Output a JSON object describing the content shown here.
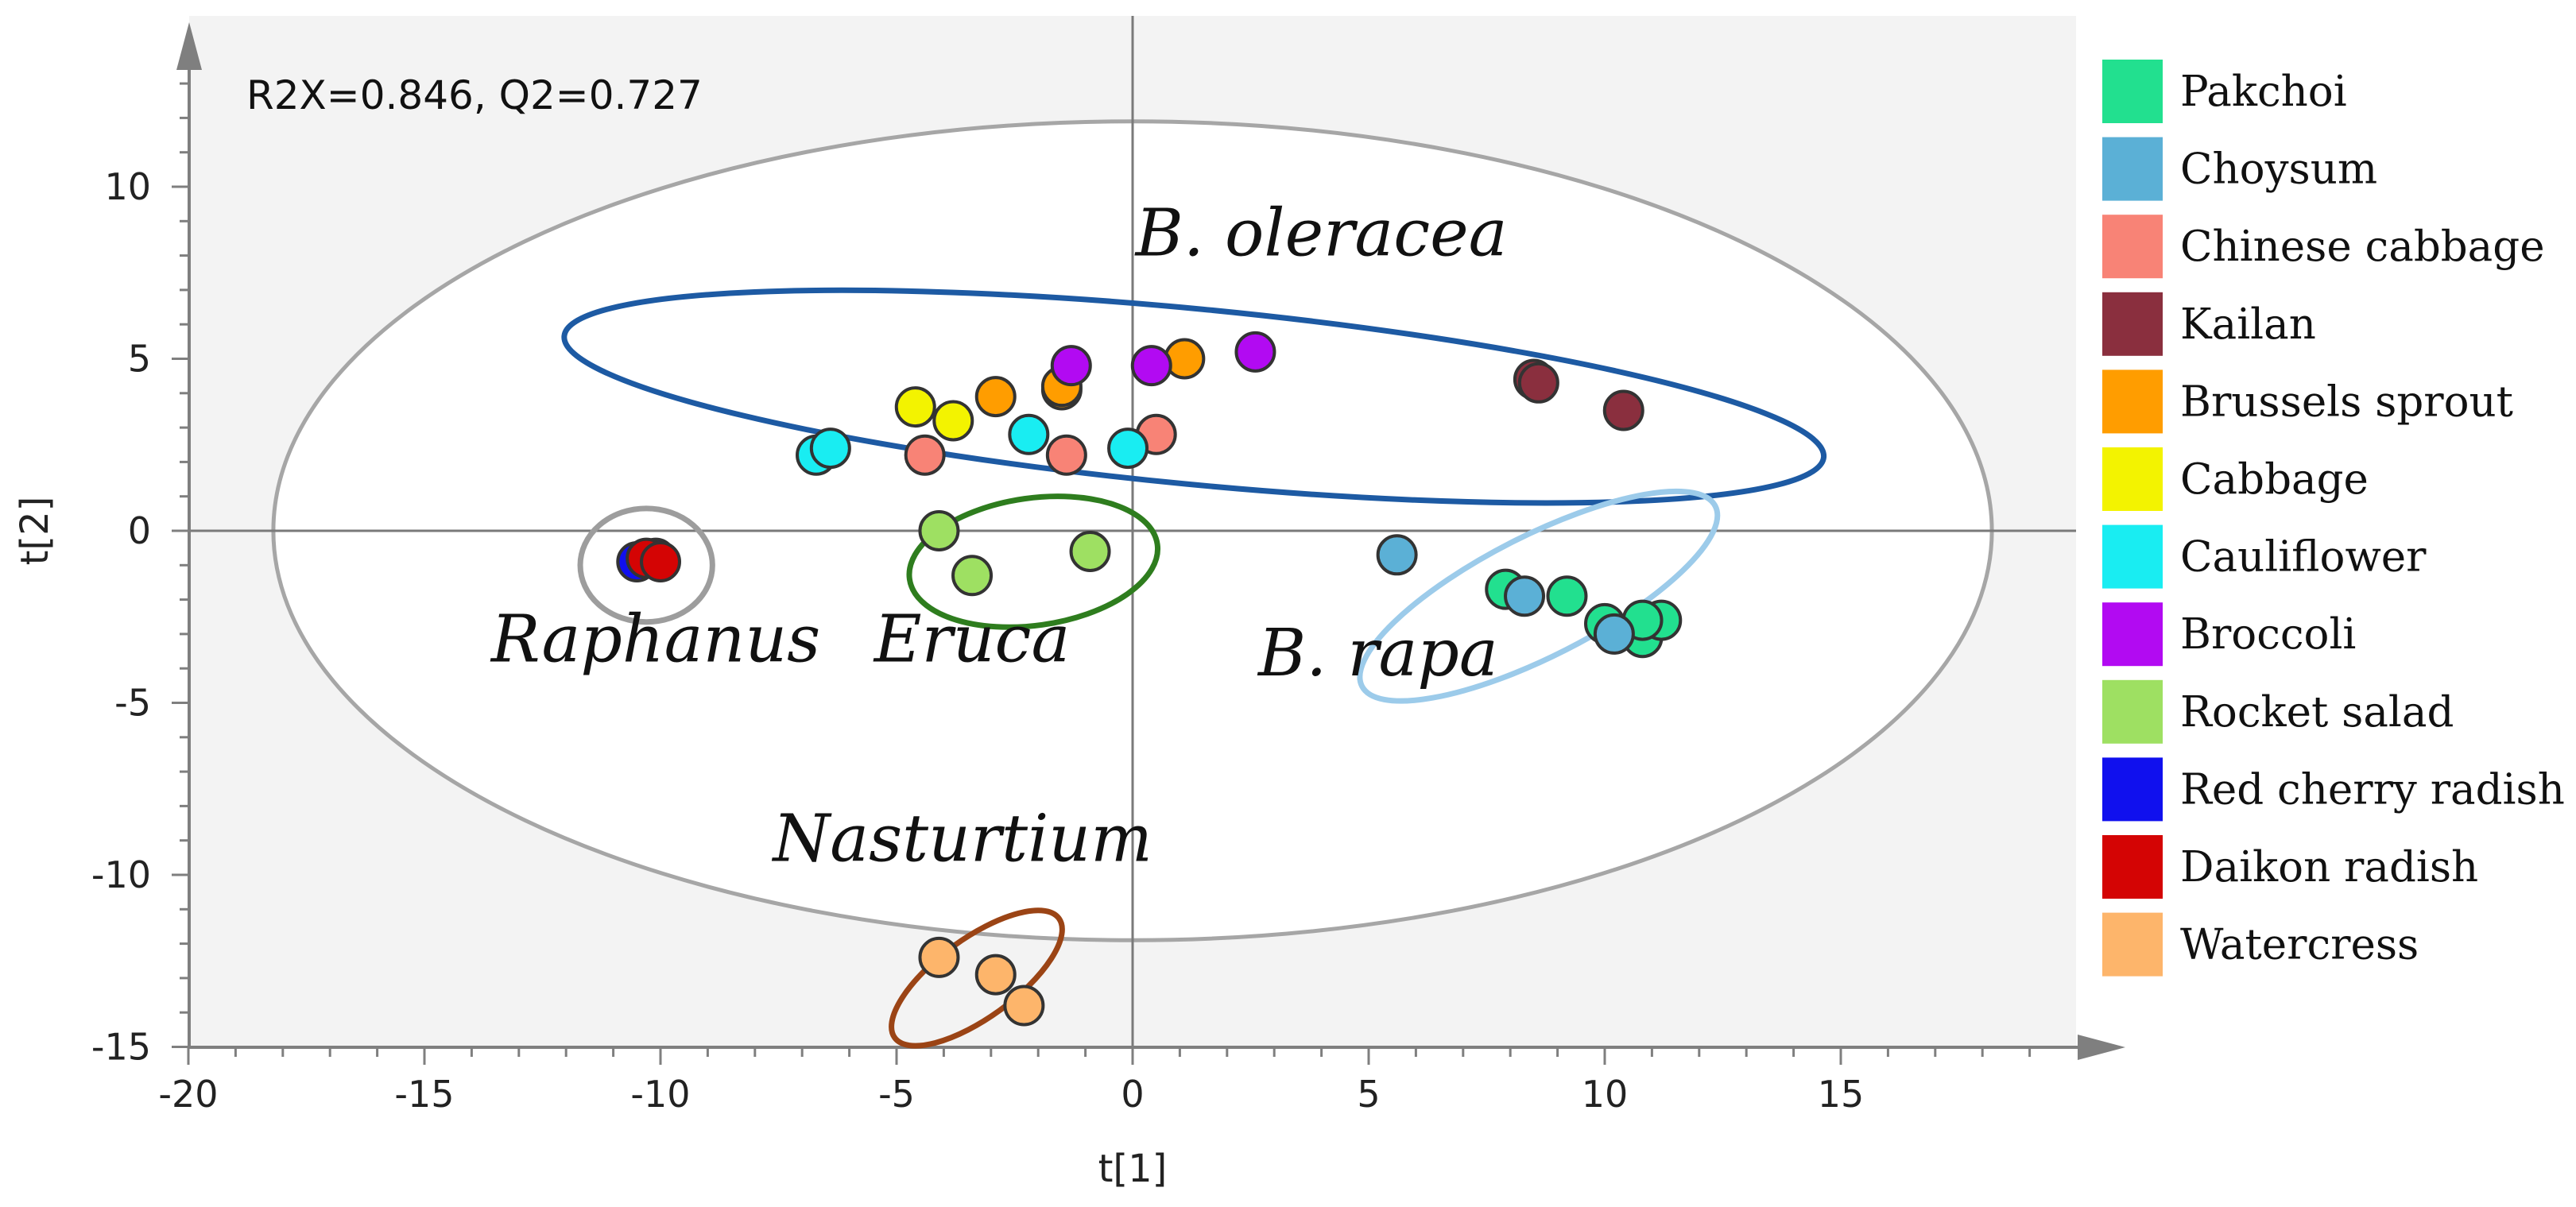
{
  "chart_data": {
    "type": "scatter",
    "title": "",
    "xlabel": "t[1]",
    "ylabel": "t[2]",
    "xlim": [
      -20,
      20
    ],
    "ylim": [
      -15,
      15
    ],
    "x_ticks": [
      -20,
      -15,
      -10,
      -5,
      0,
      5,
      10,
      15
    ],
    "y_ticks": [
      -15,
      -10,
      -5,
      0,
      5,
      10
    ],
    "x_tick_labels": [
      "-20",
      "-15",
      "-10",
      "-5",
      "0",
      "5",
      "10",
      "15"
    ],
    "y_tick_labels": [
      "-15",
      "-10",
      "-5",
      "0",
      "5",
      "10"
    ],
    "annotation": "R2X=0.846, Q2=0.727",
    "legend_position": "right",
    "hotelling_ellipse": {
      "cx": 0,
      "cy": 0,
      "rx": 18.2,
      "ry": 11.9,
      "color": "#a6a6a6"
    },
    "series": [
      {
        "name": "Pakchoi",
        "color": "#22e08f",
        "points": [
          [
            7.9,
            -1.7
          ],
          [
            9.2,
            -1.9
          ],
          [
            10.0,
            -2.7
          ],
          [
            10.8,
            -3.1
          ],
          [
            11.2,
            -2.6
          ],
          [
            10.8,
            -2.6
          ]
        ]
      },
      {
        "name": "Choysum",
        "color": "#5bb0d6",
        "points": [
          [
            5.6,
            -0.7
          ],
          [
            8.3,
            -1.9
          ],
          [
            10.2,
            -3.0
          ]
        ]
      },
      {
        "name": "Chinese cabbage",
        "color": "#f88376",
        "points": [
          [
            -4.4,
            2.2
          ],
          [
            -1.4,
            2.2
          ],
          [
            0.5,
            2.8
          ]
        ]
      },
      {
        "name": "Kailan",
        "color": "#8a2f3e",
        "points": [
          [
            8.5,
            4.4
          ],
          [
            8.6,
            4.3
          ],
          [
            10.4,
            3.5
          ]
        ]
      },
      {
        "name": "Brussels sprout",
        "color": "#ff9d00",
        "points": [
          [
            -2.9,
            3.9
          ],
          [
            -1.5,
            4.1
          ],
          [
            -1.5,
            4.2
          ],
          [
            1.1,
            5.0
          ]
        ]
      },
      {
        "name": "Cabbage",
        "color": "#f3f300",
        "points": [
          [
            -4.6,
            3.6
          ],
          [
            -3.8,
            3.2
          ]
        ]
      },
      {
        "name": "Cauliflower",
        "color": "#19edf2",
        "points": [
          [
            -6.7,
            2.2
          ],
          [
            -6.4,
            2.4
          ],
          [
            -2.2,
            2.8
          ],
          [
            -0.1,
            2.4
          ]
        ]
      },
      {
        "name": "Broccoli",
        "color": "#b20af2",
        "points": [
          [
            -1.3,
            4.8
          ],
          [
            0.4,
            4.8
          ],
          [
            2.6,
            5.2
          ]
        ]
      },
      {
        "name": "Rocket salad",
        "color": "#9ee062",
        "points": [
          [
            -4.1,
            0.0
          ],
          [
            -3.4,
            -1.3
          ],
          [
            -0.9,
            -0.6
          ]
        ]
      },
      {
        "name": "Red cherry radish",
        "color": "#1010ee",
        "points": [
          [
            -10.5,
            -0.9
          ],
          [
            -10.1,
            -0.8
          ]
        ]
      },
      {
        "name": "Daikon radish",
        "color": "#d40404",
        "points": [
          [
            -10.3,
            -0.8
          ],
          [
            -10.0,
            -0.9
          ]
        ]
      },
      {
        "name": "Watercress",
        "color": "#fdb56b",
        "points": [
          [
            -4.1,
            -12.4
          ],
          [
            -2.9,
            -12.9
          ],
          [
            -2.3,
            -13.8
          ]
        ]
      }
    ],
    "groups": [
      {
        "label": "B. oleracea",
        "color": "#1d5aa3",
        "cx": 1.3,
        "cy": 3.9,
        "rx": 13.4,
        "ry": 2.55,
        "angle_deg": 5.5,
        "label_pos": [
          4.0,
          8.0
        ]
      },
      {
        "label": "Raphanus",
        "color": "#9d9d9d",
        "cx": -10.3,
        "cy": -1.0,
        "rx": 1.4,
        "ry": 1.65,
        "angle_deg": 0,
        "label_pos": [
          -10.1,
          -3.8
        ]
      },
      {
        "label": "Eruca",
        "color": "#2e7d1e",
        "cx": -2.1,
        "cy": -0.9,
        "rx": 2.65,
        "ry": 1.85,
        "angle_deg": -8,
        "label_pos": [
          -3.4,
          -3.8
        ]
      },
      {
        "label": "B. rapa",
        "color": "#9ccbea",
        "cx": 8.6,
        "cy": -1.9,
        "rx": 4.2,
        "ry": 1.75,
        "angle_deg": -27,
        "label_pos": [
          5.2,
          -4.2
        ]
      },
      {
        "label": "Nasturtium",
        "color": "#9b4415",
        "cx": -3.3,
        "cy": -13.0,
        "rx": 2.15,
        "ry": 1.15,
        "angle_deg": -36,
        "label_pos": [
          -3.6,
          -9.6
        ]
      }
    ]
  }
}
